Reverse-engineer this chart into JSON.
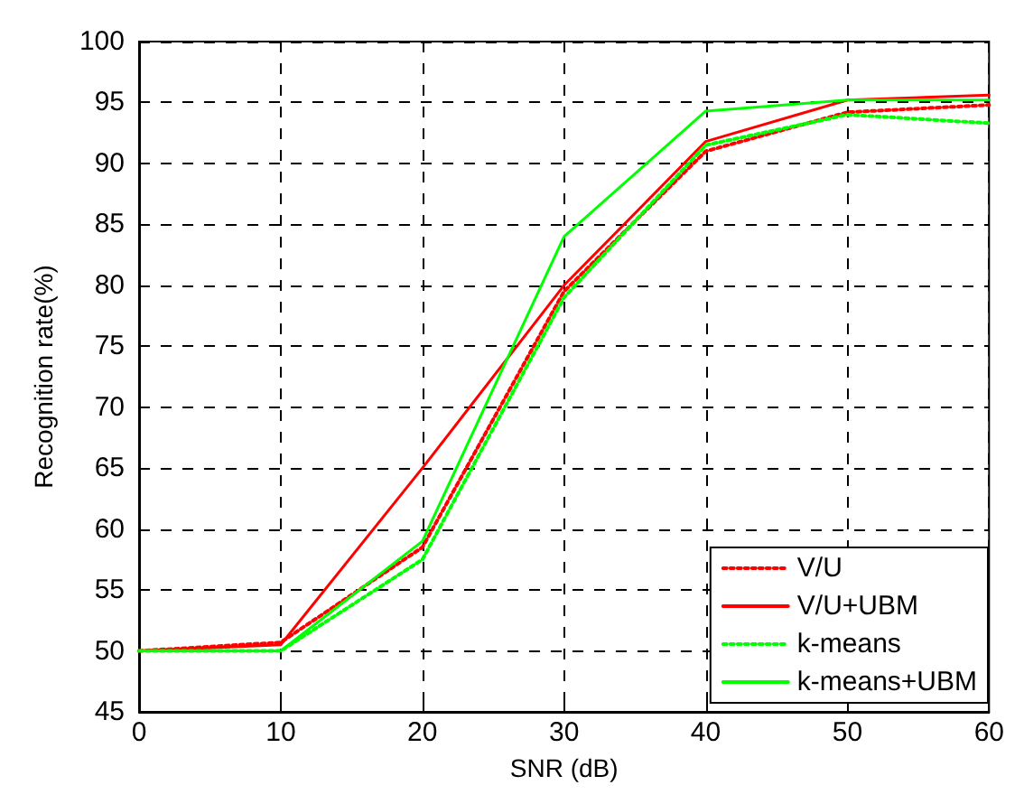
{
  "chart_data": {
    "type": "line",
    "xlabel": "SNR (dB)",
    "ylabel": "Recognition rate(%)",
    "x": [
      0,
      10,
      20,
      30,
      40,
      50,
      60
    ],
    "series": [
      {
        "name": "V/U",
        "color": "#ff0000",
        "line_style": "dotted",
        "values": [
          50,
          50.7,
          58.5,
          79.5,
          91,
          94.2,
          94.8
        ]
      },
      {
        "name": "V/U+UBM",
        "color": "#ff0000",
        "line_style": "solid",
        "values": [
          50,
          50.5,
          65,
          80,
          91.8,
          95.2,
          95.6
        ]
      },
      {
        "name": "k-means",
        "color": "#00ff00",
        "line_style": "dotted",
        "values": [
          50,
          50,
          57.5,
          79,
          91.5,
          94,
          93.3
        ]
      },
      {
        "name": "k-means+UBM",
        "color": "#00ff00",
        "line_style": "solid",
        "values": [
          50,
          50,
          59,
          84,
          94.3,
          95.2,
          95.2
        ]
      }
    ],
    "xlim": [
      0,
      60
    ],
    "xticks": [
      0,
      10,
      20,
      30,
      40,
      50,
      60
    ],
    "ylim": [
      45,
      100
    ],
    "yticks": [
      45,
      50,
      55,
      60,
      65,
      70,
      75,
      80,
      85,
      90,
      95,
      100
    ],
    "grid": true,
    "legend": "bottom right",
    "marker": "none"
  }
}
